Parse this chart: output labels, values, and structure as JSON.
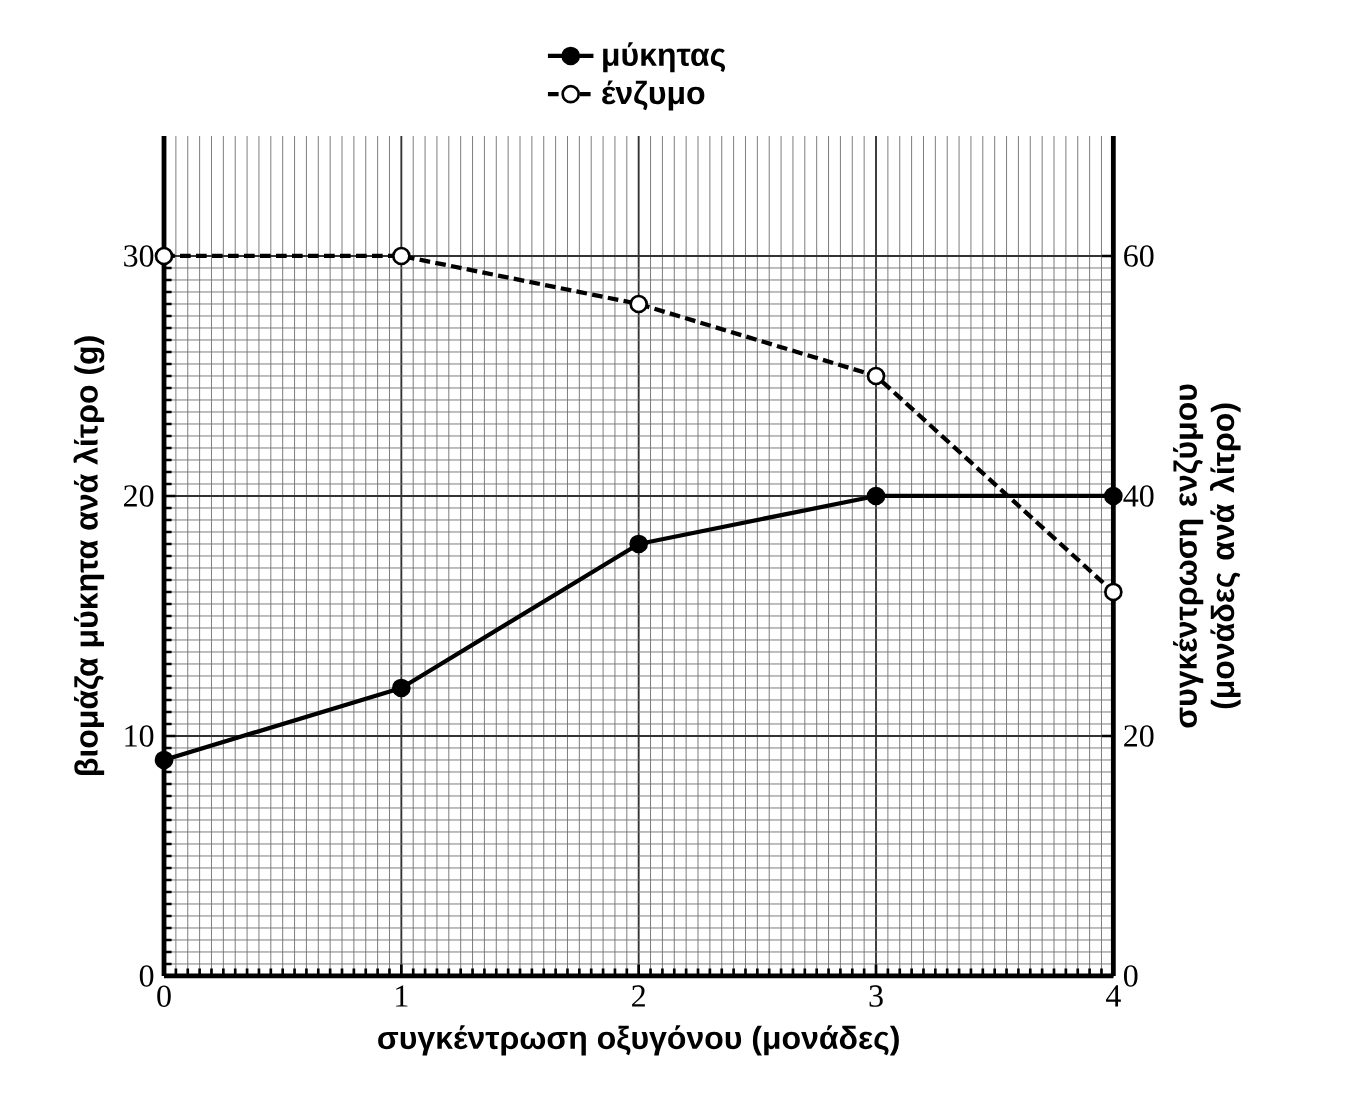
{
  "chart_data": {
    "type": "line",
    "xlabel": "συγκέντρωση οξυγόνου (μονάδες)",
    "ylabel": "βιομάζα μύκητα ανά λίτρο (g)",
    "y2label": "συγκέντρωση ενζύμου (μονάδες ανά λίτρο)",
    "x": [
      0,
      1,
      2,
      3,
      4
    ],
    "series": [
      {
        "name": "μύκητας",
        "color": "#000000",
        "values": [
          9,
          12,
          18,
          20,
          20
        ],
        "line_style": "solid"
      },
      {
        "name": "ένζυμο",
        "color": "#000000",
        "values": [
          60,
          60,
          56,
          50,
          32
        ],
        "axis": "y2",
        "line_style": "dashed"
      }
    ],
    "xlim": [
      0,
      4
    ],
    "ylim": [
      0,
      35
    ],
    "y2lim": [
      0,
      70
    ],
    "xticks": [
      0,
      1,
      2,
      3,
      4
    ],
    "yticks": [
      0,
      10,
      20,
      30
    ],
    "y2ticks": [
      0,
      20,
      40,
      60
    ],
    "grid": true,
    "legend": "top",
    "marker": "circle"
  }
}
